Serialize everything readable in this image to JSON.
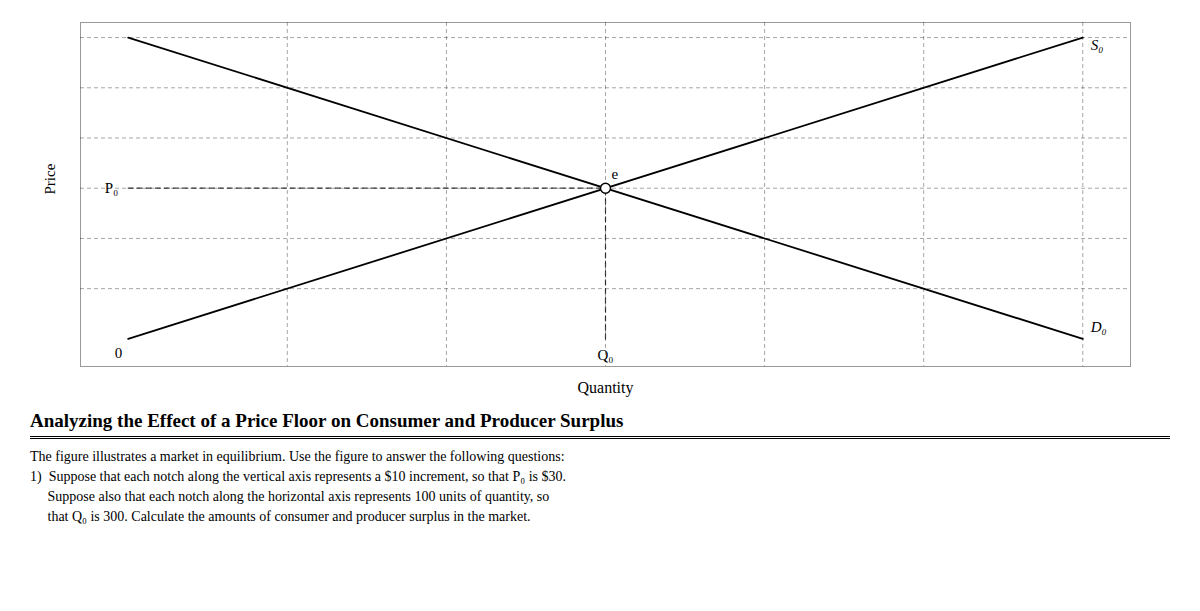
{
  "chart_data": {
    "type": "line",
    "title": "Analyzing the Effect of a Price Floor on Consumer and Producer Surplus",
    "caption": [
      "The figure illustrates a market in equilibrium. Use the figure to answer the following questions:",
      "1)  Suppose that each notch along the vertical axis represents a $10 increment, so that P₀ is $30.",
      "     Suppose also that each notch along the horizontal axis represents 100 units of quantity, so",
      "     that Q₀ is 300. Calculate the amounts of consumer and producer surplus in the market."
    ],
    "xlabel": "Quantity",
    "ylabel": "Price",
    "xlim": [
      -0.3,
      6.3
    ],
    "ylim": [
      -0.55,
      6.3
    ],
    "xticks": [
      1,
      2,
      3,
      4,
      5,
      6
    ],
    "yticks": [
      1,
      2,
      3,
      4,
      5,
      6
    ],
    "grid": true,
    "tick_labels": false,
    "series": [
      {
        "name": "S₀",
        "type": "line",
        "x": [
          0,
          6
        ],
        "values": [
          0,
          6
        ]
      },
      {
        "name": "D₀",
        "type": "line",
        "x": [
          0,
          6
        ],
        "values": [
          6,
          0
        ]
      },
      {
        "type": "line",
        "line_style": "dashed",
        "x": [
          3,
          3
        ],
        "values": [
          0,
          3
        ]
      },
      {
        "type": "line",
        "line_style": "dashed",
        "x": [
          0,
          3
        ],
        "values": [
          3,
          3
        ]
      },
      {
        "type": "scatter",
        "marker": "circle",
        "x": [
          3
        ],
        "values": [
          3
        ]
      }
    ],
    "annotations": [
      {
        "text": "e",
        "x": 3,
        "y": 3
      },
      {
        "text": "P₀",
        "x": 0,
        "y": 3
      },
      {
        "text": "Q₀",
        "x": 3,
        "y": 0
      },
      {
        "text": "0",
        "x": 0,
        "y": 0
      }
    ]
  }
}
